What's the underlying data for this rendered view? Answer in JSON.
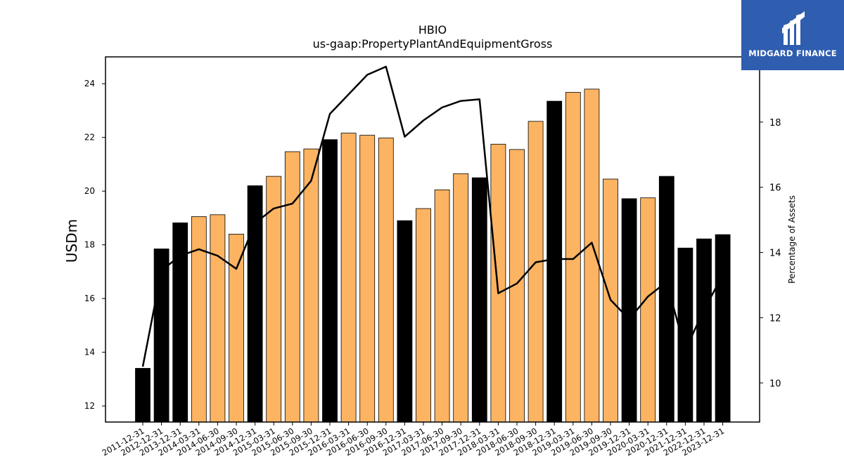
{
  "brand": {
    "name": "MIDGARD FINANCE",
    "bg_color": "#2f5db0"
  },
  "chart_data": {
    "type": "bar",
    "title": "HBIO",
    "subtitle": "us-gaap:PropertyPlantAndEquipmentGross",
    "ylabel": "USDm",
    "y2label": "Percentage of Assets",
    "ylim": [
      11.4,
      25.0
    ],
    "y2lim": [
      8.8,
      20.0
    ],
    "yticks": [
      12,
      14,
      16,
      18,
      20,
      22,
      24
    ],
    "y2ticks": [
      10,
      12,
      14,
      16,
      18
    ],
    "colors": {
      "annual": "#000000",
      "quarterly": "#fdb462",
      "line": "#000000"
    },
    "categories": [
      "2011-12-31",
      "2012-12-31",
      "2013-12-31",
      "2014-03-31",
      "2014-06-30",
      "2014-09-30",
      "2014-12-31",
      "2015-03-31",
      "2015-06-30",
      "2015-09-30",
      "2015-12-31",
      "2016-03-31",
      "2016-06-30",
      "2016-09-30",
      "2016-12-31",
      "2017-03-31",
      "2017-06-30",
      "2017-09-30",
      "2017-12-31",
      "2018-03-31",
      "2018-06-30",
      "2018-09-30",
      "2018-12-31",
      "2019-03-31",
      "2019-06-30",
      "2019-09-30",
      "2019-12-31",
      "2020-03-31",
      "2020-12-31",
      "2021-12-31",
      "2022-12-31",
      "2023-12-31"
    ],
    "series": [
      {
        "values": [
          13.4,
          17.85,
          18.82,
          19.05,
          19.12,
          18.4,
          20.2,
          20.55,
          21.47,
          21.57,
          21.92,
          22.16,
          22.08,
          21.98,
          18.9,
          19.35,
          20.05,
          20.65,
          20.5,
          21.75,
          21.55,
          22.6,
          23.35,
          23.68,
          23.8,
          20.45,
          19.72,
          19.75,
          20.55,
          17.88,
          18.22,
          18.38
        ],
        "period": [
          "annual",
          "annual",
          "annual",
          "quarterly",
          "quarterly",
          "quarterly",
          "annual",
          "quarterly",
          "quarterly",
          "quarterly",
          "annual",
          "quarterly",
          "quarterly",
          "quarterly",
          "annual",
          "quarterly",
          "quarterly",
          "quarterly",
          "annual",
          "quarterly",
          "quarterly",
          "quarterly",
          "annual",
          "quarterly",
          "quarterly",
          "quarterly",
          "annual",
          "quarterly",
          "annual",
          "annual",
          "annual",
          "annual"
        ]
      },
      {
        "values": [
          10.5,
          13.45,
          13.9,
          14.1,
          13.9,
          13.5,
          14.9,
          15.35,
          15.5,
          16.2,
          18.25,
          18.85,
          19.45,
          19.7,
          17.55,
          18.05,
          18.45,
          18.65,
          18.7,
          12.75,
          13.05,
          13.7,
          13.8,
          13.8,
          14.3,
          12.55,
          11.95,
          12.65,
          13.1,
          11.0,
          12.25,
          13.3
        ]
      }
    ]
  }
}
